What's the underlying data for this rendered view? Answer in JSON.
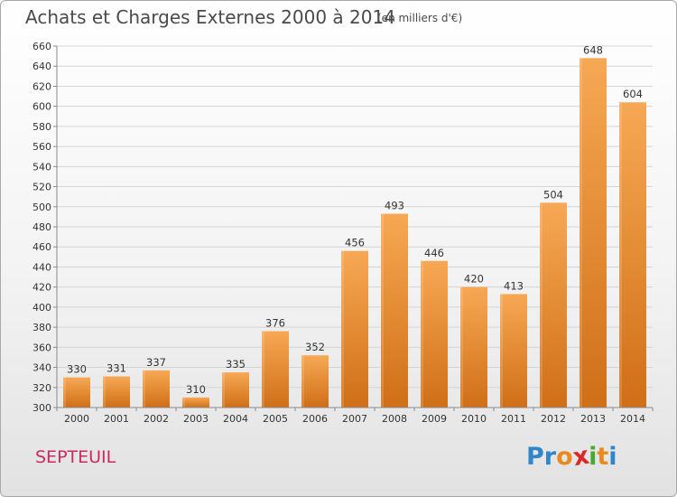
{
  "header": {
    "title": "Achats et Charges Externes 2000 à 2014",
    "subtitle": "(en milliers d'€)"
  },
  "footer": {
    "commune": "SEPTEUIL",
    "logo_letters": [
      {
        "ch": "P",
        "color": "#2f86c8"
      },
      {
        "ch": "r",
        "color": "#2f86c8"
      },
      {
        "ch": "o",
        "color": "#e98a1f"
      },
      {
        "ch": "x",
        "color": "#d92a2a"
      },
      {
        "ch": "i",
        "color": "#49a832"
      },
      {
        "ch": "t",
        "color": "#e98a1f"
      },
      {
        "ch": "i",
        "color": "#2f86c8"
      }
    ]
  },
  "colors": {
    "bar_light": "#f7a854",
    "bar_dark": "#cf6f17",
    "grid": "#d4d4d4",
    "axis": "#8a8a8a"
  },
  "chart_data": {
    "type": "bar",
    "title": "Achats et Charges Externes 2000 à 2014",
    "subtitle": "(en milliers d'€)",
    "xlabel": "",
    "ylabel": "",
    "grid": true,
    "ylim": [
      300,
      660
    ],
    "ytick_step": 20,
    "categories": [
      "2000",
      "2001",
      "2002",
      "2003",
      "2004",
      "2005",
      "2006",
      "2007",
      "2008",
      "2009",
      "2010",
      "2011",
      "2012",
      "2013",
      "2014"
    ],
    "values": [
      330,
      331,
      337,
      310,
      335,
      376,
      352,
      456,
      493,
      446,
      420,
      413,
      504,
      648,
      604
    ]
  }
}
